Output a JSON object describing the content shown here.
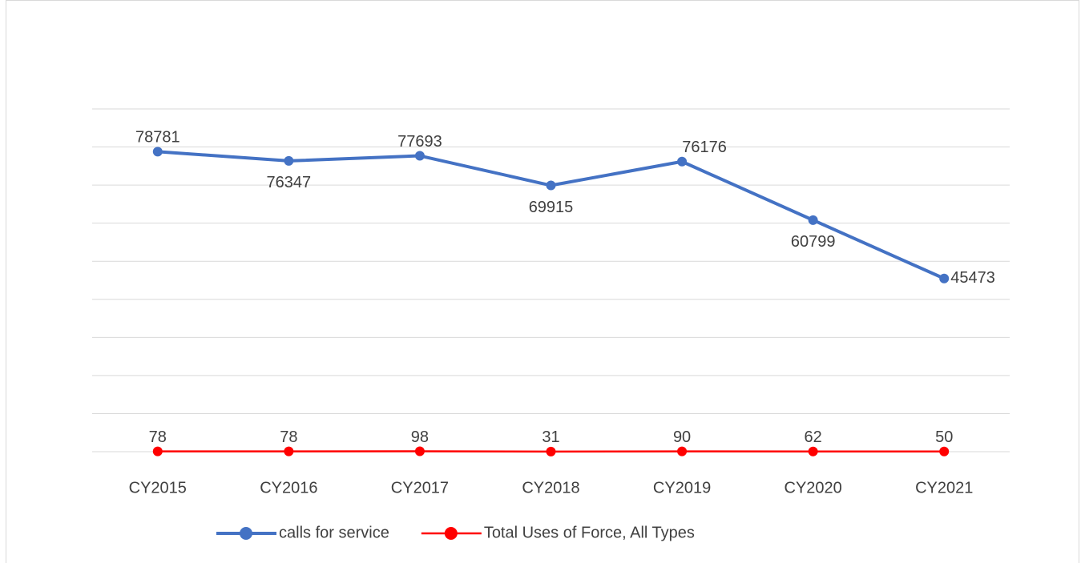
{
  "chart_data": {
    "type": "line",
    "categories": [
      "CY2015",
      "CY2016",
      "CY2017",
      "CY2018",
      "CY2019",
      "CY2020",
      "CY2021"
    ],
    "series": [
      {
        "name": "calls for service",
        "color": "#4472c4",
        "values": [
          78781,
          76347,
          77693,
          69915,
          76176,
          60799,
          45473
        ]
      },
      {
        "name": "Total Uses of Force, All Types",
        "color": "#ff0000",
        "values": [
          78,
          78,
          98,
          31,
          90,
          62,
          50
        ]
      }
    ],
    "ylim": [
      0,
      90000
    ],
    "yticks": [
      0,
      10000,
      20000,
      30000,
      40000,
      50000,
      60000,
      70000,
      80000,
      90000
    ],
    "grid": true,
    "legend": "bottom"
  }
}
